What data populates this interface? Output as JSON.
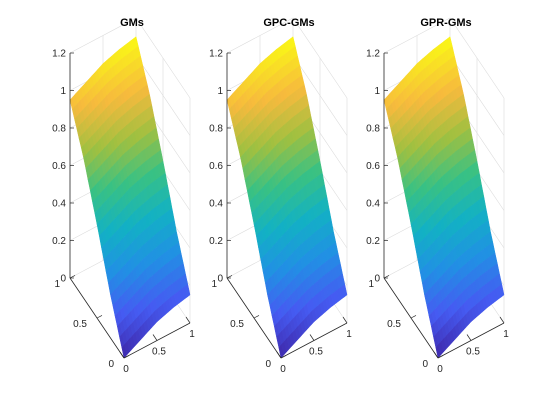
{
  "chart_data": [
    {
      "type": "surface",
      "title": "GMs",
      "xlabel": "",
      "ylabel": "",
      "zlabel": "",
      "xlim": [
        0,
        1
      ],
      "ylim": [
        0,
        1
      ],
      "zlim": [
        0,
        1.2
      ],
      "x_ticks": [
        "0",
        "0.5",
        "1"
      ],
      "y_ticks": [
        "0",
        "0.5",
        "1"
      ],
      "z_ticks": [
        "0",
        "0.2",
        "0.4",
        "0.6",
        "0.8",
        "1",
        "1.2"
      ],
      "grid": true,
      "colormap": "parula",
      "x": [
        0,
        0.25,
        0.5,
        0.75,
        1
      ],
      "y": [
        0,
        0.25,
        0.5,
        0.75,
        1
      ],
      "z": [
        [
          0.0,
          0.05,
          0.1,
          0.13,
          0.15
        ],
        [
          0.23,
          0.28,
          0.33,
          0.36,
          0.38
        ],
        [
          0.5,
          0.55,
          0.6,
          0.63,
          0.65
        ],
        [
          0.75,
          0.8,
          0.85,
          0.88,
          0.9
        ],
        [
          0.95,
          1.0,
          1.05,
          1.08,
          1.1
        ]
      ]
    },
    {
      "type": "surface",
      "title": "GPC-GMs",
      "xlabel": "",
      "ylabel": "",
      "zlabel": "",
      "xlim": [
        0,
        1
      ],
      "ylim": [
        0,
        1
      ],
      "zlim": [
        0,
        1.2
      ],
      "x_ticks": [
        "0",
        "0.5",
        "1"
      ],
      "y_ticks": [
        "0",
        "0.5",
        "1"
      ],
      "z_ticks": [
        "0",
        "0.2",
        "0.4",
        "0.6",
        "0.8",
        "1",
        "1.2"
      ],
      "grid": true,
      "colormap": "parula",
      "x": [
        0,
        0.25,
        0.5,
        0.75,
        1
      ],
      "y": [
        0,
        0.25,
        0.5,
        0.75,
        1
      ],
      "z": [
        [
          0.0,
          0.05,
          0.1,
          0.13,
          0.15
        ],
        [
          0.23,
          0.28,
          0.33,
          0.36,
          0.38
        ],
        [
          0.5,
          0.55,
          0.6,
          0.63,
          0.65
        ],
        [
          0.75,
          0.8,
          0.85,
          0.88,
          0.9
        ],
        [
          0.95,
          1.0,
          1.05,
          1.08,
          1.1
        ]
      ]
    },
    {
      "type": "surface",
      "title": "GPR-GMs",
      "xlabel": "",
      "ylabel": "",
      "zlabel": "",
      "xlim": [
        0,
        1
      ],
      "ylim": [
        0,
        1
      ],
      "zlim": [
        0,
        1.2
      ],
      "x_ticks": [
        "0",
        "0.5",
        "1"
      ],
      "y_ticks": [
        "0",
        "0.5",
        "1"
      ],
      "z_ticks": [
        "0",
        "0.2",
        "0.4",
        "0.6",
        "0.8",
        "1",
        "1.2"
      ],
      "grid": true,
      "colormap": "parula",
      "x": [
        0,
        0.25,
        0.5,
        0.75,
        1
      ],
      "y": [
        0,
        0.25,
        0.5,
        0.75,
        1
      ],
      "z": [
        [
          0.0,
          0.05,
          0.1,
          0.13,
          0.15
        ],
        [
          0.23,
          0.28,
          0.33,
          0.36,
          0.38
        ],
        [
          0.5,
          0.55,
          0.6,
          0.63,
          0.65
        ],
        [
          0.75,
          0.8,
          0.85,
          0.88,
          0.9
        ],
        [
          0.95,
          1.0,
          1.05,
          1.08,
          1.1
        ]
      ]
    }
  ]
}
